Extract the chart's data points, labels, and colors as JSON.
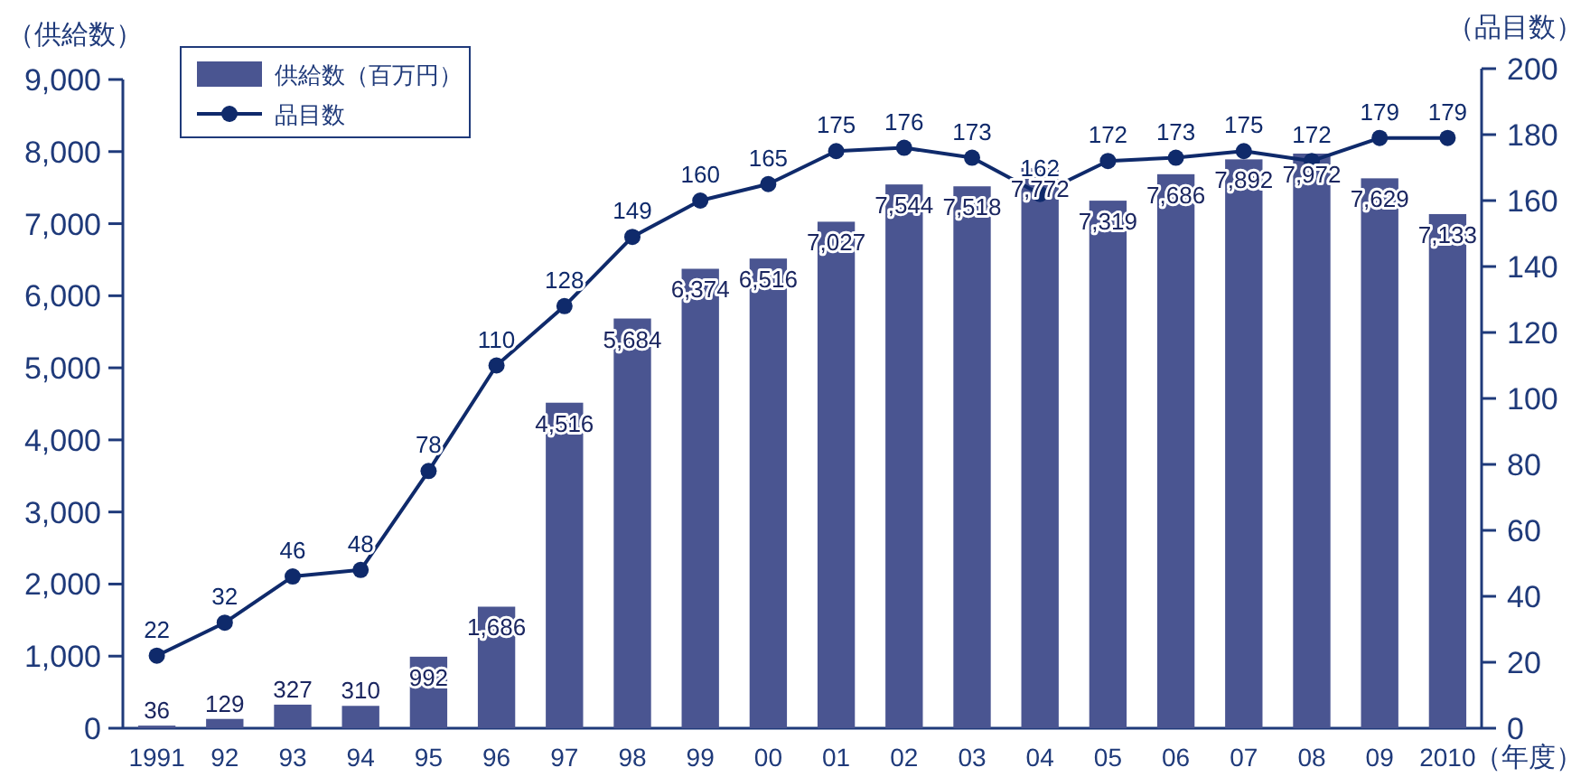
{
  "chart_data": {
    "type": "bar",
    "ylabel": "（供給数）",
    "y2label": "（品目数）",
    "xlabel": "（年度）",
    "categories": [
      "1991",
      "92",
      "93",
      "94",
      "95",
      "96",
      "97",
      "98",
      "99",
      "00",
      "01",
      "02",
      "03",
      "04",
      "05",
      "06",
      "07",
      "08",
      "09",
      "2010"
    ],
    "series": [
      {
        "name": "供給数（百万円）",
        "color": "#4a5591",
        "values": [
          36,
          129,
          327,
          310,
          992,
          1686,
          4516,
          5684,
          6374,
          6516,
          7027,
          7544,
          7518,
          7772,
          7319,
          7686,
          7892,
          7972,
          7629,
          7133
        ],
        "value_labels": [
          "36",
          "129",
          "327",
          "310",
          "992",
          "1,686",
          "4,516",
          "5,684",
          "6,374",
          "6,516",
          "7,027",
          "7,544",
          "7,518",
          "7,772",
          "7,319",
          "7,686",
          "7,892",
          "7,972",
          "7,629",
          "7,133"
        ]
      },
      {
        "name": "品目数",
        "type": "line",
        "axis": "y2",
        "color": "#0f2a6b",
        "marker": "circle",
        "values": [
          22,
          32,
          46,
          48,
          78,
          110,
          128,
          149,
          160,
          165,
          175,
          176,
          173,
          162,
          172,
          173,
          175,
          172,
          179,
          179
        ]
      }
    ],
    "ylim": [
      0,
      9000
    ],
    "yticks": [
      0,
      {
        "value": 1000,
        "label": "1,000"
      },
      {
        "value": 2000,
        "label": "2,000"
      },
      {
        "value": 3000,
        "label": "3,000"
      },
      {
        "value": 4000,
        "label": "4,000"
      },
      {
        "value": 5000,
        "label": "5,000"
      },
      {
        "value": 6000,
        "label": "6,000"
      },
      {
        "value": 7000,
        "label": "7,000"
      },
      {
        "value": 8000,
        "label": "8,000"
      },
      {
        "value": 9000,
        "label": "9,000"
      }
    ],
    "y2lim": [
      0,
      200
    ],
    "y2ticks": [
      0,
      20,
      40,
      60,
      80,
      100,
      120,
      140,
      160,
      180,
      200
    ],
    "data_labels": true,
    "legend": "top left",
    "grid": false
  }
}
